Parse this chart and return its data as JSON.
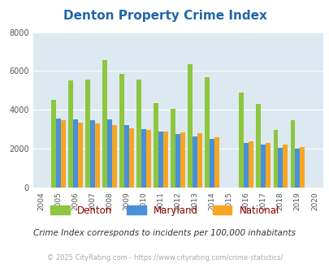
{
  "title": "Denton Property Crime Index",
  "years": [
    2004,
    2005,
    2006,
    2007,
    2008,
    2009,
    2010,
    2011,
    2012,
    2013,
    2014,
    2015,
    2016,
    2017,
    2018,
    2019,
    2020
  ],
  "denton": [
    0,
    4500,
    5500,
    5550,
    6550,
    5850,
    5550,
    4350,
    4050,
    6350,
    5700,
    0,
    4900,
    4300,
    2950,
    3450,
    0
  ],
  "maryland": [
    0,
    3550,
    3500,
    3450,
    3500,
    3200,
    3000,
    2900,
    2750,
    2650,
    2500,
    0,
    2300,
    2200,
    2050,
    2000,
    0
  ],
  "national": [
    0,
    3450,
    3350,
    3300,
    3200,
    3050,
    2950,
    2900,
    2850,
    2800,
    2600,
    0,
    2400,
    2300,
    2200,
    2100,
    0
  ],
  "denton_color": "#8dc63f",
  "maryland_color": "#4a90d9",
  "national_color": "#f5a623",
  "bg_color": "#dce9f0",
  "ylim": [
    0,
    8000
  ],
  "yticks": [
    0,
    2000,
    4000,
    6000,
    8000
  ],
  "subtitle": "Crime Index corresponds to incidents per 100,000 inhabitants",
  "footer": "© 2025 CityRating.com - https://www.cityrating.com/crime-statistics/",
  "title_color": "#2266aa",
  "subtitle_color": "#333333",
  "footer_color": "#aaaaaa",
  "legend_label_color": "#8b0000"
}
